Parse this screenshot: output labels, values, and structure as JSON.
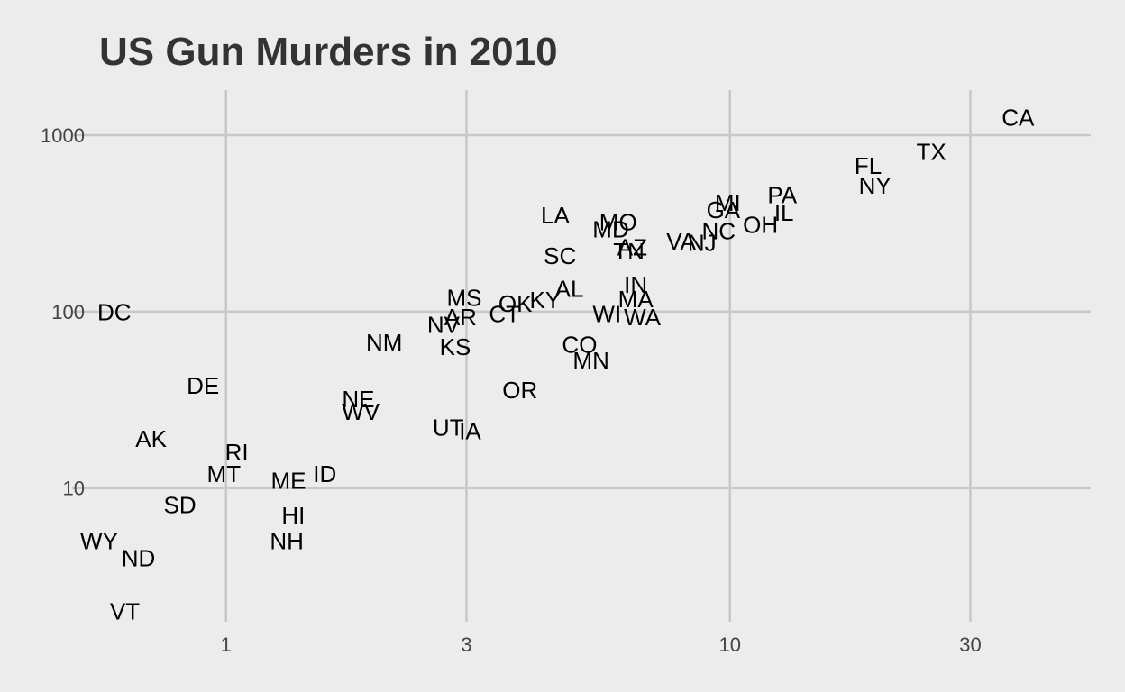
{
  "chart_data": {
    "type": "scatter",
    "title": "US Gun Murders in 2010",
    "xlabel": "",
    "ylabel": "",
    "x_scale": "log10",
    "y_scale": "log10",
    "grid": true,
    "legend": "none",
    "x_ticks": [
      1,
      3,
      10,
      30
    ],
    "x_tick_labels": [
      "1",
      "3",
      "10",
      "30"
    ],
    "y_ticks": [
      10,
      100,
      1000
    ],
    "y_tick_labels": [
      "10",
      "100",
      "1000"
    ],
    "xlim": [
      0.56,
      52
    ],
    "ylim": [
      1.75,
      1800
    ],
    "colors": {
      "background": "#ececec",
      "grid": "#c8c8c8",
      "text": "#000000",
      "title": "#333333"
    },
    "points": [
      {
        "label": "CA",
        "x": 37.3,
        "y": 1257
      },
      {
        "label": "TX",
        "x": 25.1,
        "y": 805
      },
      {
        "label": "FL",
        "x": 18.8,
        "y": 669
      },
      {
        "label": "NY",
        "x": 19.4,
        "y": 517
      },
      {
        "label": "PA",
        "x": 12.7,
        "y": 457
      },
      {
        "label": "IL",
        "x": 12.8,
        "y": 364
      },
      {
        "label": "MI",
        "x": 9.9,
        "y": 413
      },
      {
        "label": "GA",
        "x": 9.7,
        "y": 376
      },
      {
        "label": "OH",
        "x": 11.5,
        "y": 310
      },
      {
        "label": "NC",
        "x": 9.5,
        "y": 286
      },
      {
        "label": "NJ",
        "x": 8.8,
        "y": 246
      },
      {
        "label": "VA",
        "x": 8.0,
        "y": 250
      },
      {
        "label": "MO",
        "x": 6.0,
        "y": 321
      },
      {
        "label": "MD",
        "x": 5.8,
        "y": 293
      },
      {
        "label": "LA",
        "x": 4.5,
        "y": 351
      },
      {
        "label": "TN",
        "x": 6.3,
        "y": 219
      },
      {
        "label": "AZ",
        "x": 6.4,
        "y": 232
      },
      {
        "label": "SC",
        "x": 4.6,
        "y": 207
      },
      {
        "label": "IN",
        "x": 6.5,
        "y": 142
      },
      {
        "label": "AL",
        "x": 4.8,
        "y": 135
      },
      {
        "label": "MA",
        "x": 6.5,
        "y": 118
      },
      {
        "label": "WI",
        "x": 5.7,
        "y": 97
      },
      {
        "label": "WA",
        "x": 6.7,
        "y": 93
      },
      {
        "label": "KY",
        "x": 4.3,
        "y": 116
      },
      {
        "label": "OK",
        "x": 3.75,
        "y": 111
      },
      {
        "label": "CT",
        "x": 3.57,
        "y": 97
      },
      {
        "label": "MS",
        "x": 2.97,
        "y": 120
      },
      {
        "label": "AR",
        "x": 2.92,
        "y": 93
      },
      {
        "label": "NV",
        "x": 2.7,
        "y": 84
      },
      {
        "label": "KS",
        "x": 2.85,
        "y": 63
      },
      {
        "label": "CO",
        "x": 5.03,
        "y": 65
      },
      {
        "label": "MN",
        "x": 5.3,
        "y": 53
      },
      {
        "label": "OR",
        "x": 3.83,
        "y": 36
      },
      {
        "label": "NM",
        "x": 2.06,
        "y": 67
      },
      {
        "label": "UT",
        "x": 2.76,
        "y": 22
      },
      {
        "label": "IA",
        "x": 3.05,
        "y": 21
      },
      {
        "label": "NE",
        "x": 1.83,
        "y": 32
      },
      {
        "label": "WV",
        "x": 1.85,
        "y": 27
      },
      {
        "label": "DC",
        "x": 0.6,
        "y": 99
      },
      {
        "label": "DE",
        "x": 0.9,
        "y": 38
      },
      {
        "label": "AK",
        "x": 0.71,
        "y": 19
      },
      {
        "label": "RI",
        "x": 1.05,
        "y": 16
      },
      {
        "label": "MT",
        "x": 0.99,
        "y": 12
      },
      {
        "label": "ME",
        "x": 1.33,
        "y": 11
      },
      {
        "label": "ID",
        "x": 1.57,
        "y": 12
      },
      {
        "label": "SD",
        "x": 0.81,
        "y": 8
      },
      {
        "label": "HI",
        "x": 1.36,
        "y": 7
      },
      {
        "label": "NH",
        "x": 1.32,
        "y": 5
      },
      {
        "label": "WY",
        "x": 0.56,
        "y": 5
      },
      {
        "label": "ND",
        "x": 0.67,
        "y": 4
      },
      {
        "label": "VT",
        "x": 0.63,
        "y": 2
      }
    ]
  }
}
